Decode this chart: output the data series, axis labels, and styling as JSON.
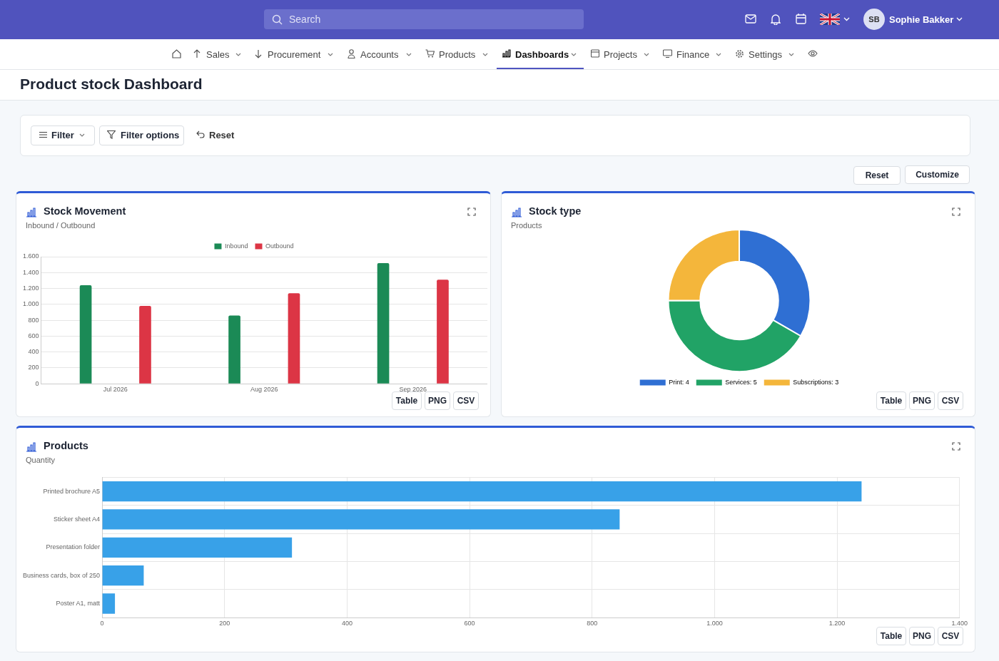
{
  "chart_data": [
    {
      "type": "other",
      "title": "Product stock Dashboard",
      "annotations": [
        "Search",
        "SB",
        "Sophie Bakker",
        "Sales",
        "Procurement",
        "Accounts",
        "Products",
        "Dashboards",
        "Projects",
        "Finance",
        "Settings",
        "Filter",
        "Filter options",
        "Reset",
        "Reset",
        "Customize"
      ]
    },
    {
      "type": "bar",
      "title": "Stock Movement",
      "subtitle": "Inbound / Outbound",
      "categories": [
        "Jul 2026",
        "Aug 2026",
        "Sep 2026"
      ],
      "series": [
        {
          "name": "Inbound",
          "color": "#1b8a56",
          "values": [
            1240,
            860,
            1520
          ]
        },
        {
          "name": "Outbound",
          "color": "#dc3545",
          "values": [
            980,
            1140,
            1310
          ]
        }
      ],
      "ylim": [
        0,
        1600
      ],
      "yticks": [
        0,
        200,
        400,
        600,
        800,
        {
          "value": 1000,
          "label": "1.000"
        },
        {
          "value": 1200,
          "label": "1.200"
        },
        {
          "value": 1400,
          "label": "1.400"
        },
        {
          "value": 1600,
          "label": "1.600"
        }
      ],
      "grid": "y",
      "legend": "top",
      "annotations": [
        "Table",
        "PNG",
        "CSV"
      ]
    },
    {
      "type": "donut",
      "title": "Stock type",
      "subtitle": "Products",
      "categories": [
        "Print: 4",
        "Services: 5",
        "Subscriptions: 3"
      ],
      "values": [
        4,
        5,
        3
      ],
      "colors": [
        "#2f6fd3",
        "#21a366",
        "#f4b63b"
      ],
      "legend": "bottom",
      "annotations": [
        "Table",
        "PNG",
        "CSV"
      ]
    },
    {
      "type": "bar",
      "orientation": "horizontal",
      "title": "Products",
      "subtitle": "Quantity",
      "categories": [
        "Printed brochure A5",
        "Sticker sheet A4",
        "Presentation folder",
        "Business cards, box of 250",
        "Poster A1, matt"
      ],
      "values": [
        1240,
        845,
        310,
        68,
        21
      ],
      "color": "#38a1e8",
      "xlim": [
        0,
        1400
      ],
      "xticks": [
        0,
        200,
        400,
        600,
        800,
        {
          "value": 1000,
          "label": "1.000"
        },
        {
          "value": 1200,
          "label": "1.200"
        },
        {
          "value": 1400,
          "label": "1.400"
        }
      ],
      "grid": true,
      "annotations": [
        "Table",
        "PNG",
        "CSV"
      ]
    }
  ]
}
